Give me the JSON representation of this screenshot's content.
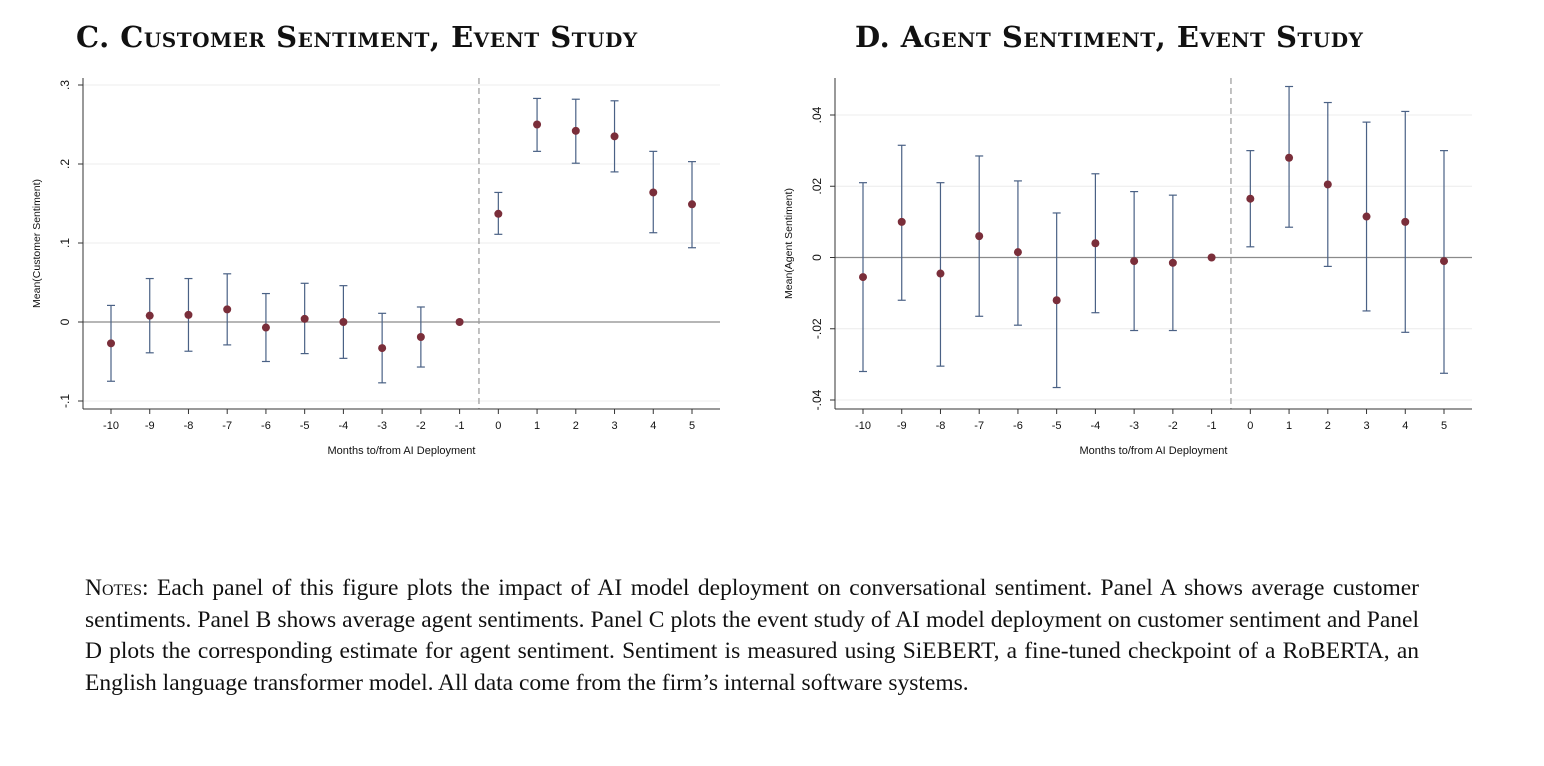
{
  "panels": {
    "c": {
      "title": "C. Customer Sentiment, Event Study"
    },
    "d": {
      "title": "D. Agent Sentiment, Event Study"
    }
  },
  "chart_data": [
    {
      "type": "scatter",
      "title": "C. Customer Sentiment, Event Study",
      "xlabel": "Months to/from AI Deployment",
      "ylabel": "Mean(Customer Sentiment)",
      "x": [
        -10,
        -9,
        -8,
        -7,
        -6,
        -5,
        -4,
        -3,
        -2,
        -1,
        0,
        1,
        2,
        3,
        4,
        5
      ],
      "xtick_labels": [
        "-10",
        "-9",
        "-8",
        "-7",
        "-6",
        "-5",
        "-4",
        "-3",
        "-2",
        "-1",
        "0",
        "1",
        "2",
        "3",
        "4",
        "5"
      ],
      "y": [
        -0.027,
        0.008,
        0.009,
        0.016,
        -0.007,
        0.004,
        0.0,
        -0.033,
        -0.019,
        0.0,
        0.137,
        0.25,
        0.242,
        0.235,
        0.164,
        0.149
      ],
      "ci_low": [
        -0.075,
        -0.039,
        -0.037,
        -0.029,
        -0.05,
        -0.04,
        -0.046,
        -0.077,
        -0.057,
        0.0,
        0.111,
        0.216,
        0.201,
        0.19,
        0.113,
        0.094
      ],
      "ci_high": [
        0.021,
        0.055,
        0.055,
        0.061,
        0.036,
        0.049,
        0.046,
        0.011,
        0.019,
        0.0,
        0.164,
        0.283,
        0.282,
        0.28,
        0.216,
        0.203
      ],
      "ylim": [
        -0.1,
        0.3
      ],
      "yticks": [
        -0.1,
        0,
        0.1,
        0.2,
        0.3
      ],
      "ytick_labels": [
        "-.1",
        "0",
        ".1",
        ".2",
        ".3"
      ],
      "reference_line": {
        "y": 0
      },
      "event_line": {
        "x": -0.5
      },
      "grid": true,
      "colors": {
        "point": "#7a2e3a",
        "error_bar": "#4a6185",
        "reference": "#8a8a8a",
        "grid": "#ececec"
      }
    },
    {
      "type": "scatter",
      "title": "D. Agent Sentiment, Event Study",
      "xlabel": "Months to/from AI Deployment",
      "ylabel": "Mean(Agent Sentiment)",
      "x": [
        -10,
        -9,
        -8,
        -7,
        -6,
        -5,
        -4,
        -3,
        -2,
        -1,
        0,
        1,
        2,
        3,
        4,
        5
      ],
      "xtick_labels": [
        "-10",
        "-9",
        "-8",
        "-7",
        "-6",
        "-5",
        "-4",
        "-3",
        "-2",
        "-1",
        "0",
        "1",
        "2",
        "3",
        "4",
        "5"
      ],
      "y": [
        -0.0055,
        0.01,
        -0.0045,
        0.006,
        0.0015,
        -0.012,
        0.004,
        -0.001,
        -0.0015,
        0.0,
        0.0165,
        0.028,
        0.0205,
        0.0115,
        0.01,
        -0.001
      ],
      "ci_low": [
        -0.032,
        -0.012,
        -0.0305,
        -0.0165,
        -0.019,
        -0.0365,
        -0.0155,
        -0.0205,
        -0.0205,
        0.0,
        0.003,
        0.0085,
        -0.0025,
        -0.015,
        -0.021,
        -0.0325
      ],
      "ci_high": [
        0.021,
        0.0315,
        0.021,
        0.0285,
        0.0215,
        0.0125,
        0.0235,
        0.0185,
        0.0175,
        0.0,
        0.03,
        0.048,
        0.0435,
        0.038,
        0.041,
        0.03
      ],
      "ylim": [
        -0.04,
        0.04
      ],
      "yticks": [
        -0.04,
        -0.02,
        0,
        0.02,
        0.04
      ],
      "ytick_labels": [
        "-.04",
        "-.02",
        "0",
        ".02",
        ".04"
      ],
      "reference_line": {
        "y": 0
      },
      "event_line": {
        "x": -0.5
      },
      "grid": true,
      "colors": {
        "point": "#7a2e3a",
        "error_bar": "#4a6185",
        "reference": "#8a8a8a",
        "grid": "#ececec"
      }
    }
  ],
  "notes": {
    "lead": "Notes:",
    "body": " Each panel of this figure plots the impact of AI model deployment on conversational sentiment. Panel A shows average customer sentiments. Panel B shows average agent sentiments. Panel C plots the event study of AI model deployment on customer sentiment and Panel D plots the corresponding estimate for agent sentiment. Sentiment is measured using SiEBERT, a fine-tuned checkpoint of a RoBERTA, an English language transformer model. All data come from the firm’s internal software systems."
  }
}
